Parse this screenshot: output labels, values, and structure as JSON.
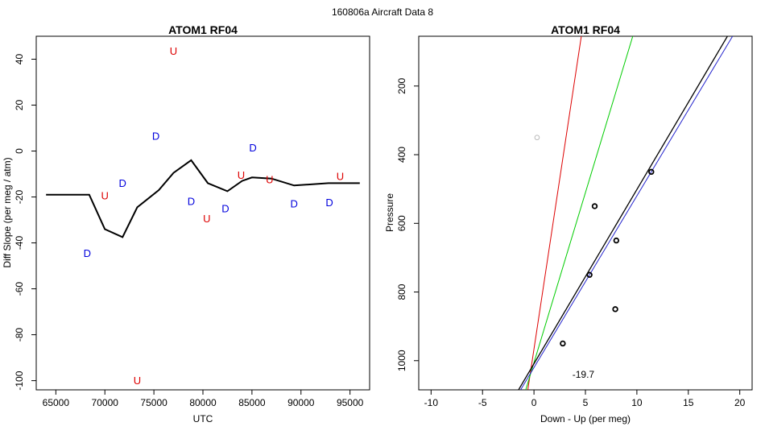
{
  "figure_title": "160806a   Aircraft Data 8",
  "colors": {
    "up": "#dd0000",
    "down": "#0000dd",
    "line": "#000000",
    "green": "#00cc00",
    "grey": "#bbbbbb",
    "blue": "#2222cc"
  },
  "chart_data": [
    {
      "type": "line",
      "title": "ATOM1 RF04",
      "xlabel": "UTC",
      "ylabel": "Diff Slope (per meg / atm)",
      "xlim": [
        63000,
        97000
      ],
      "ylim": [
        -104,
        50
      ],
      "xticks": [
        65000,
        70000,
        75000,
        80000,
        85000,
        90000,
        95000
      ],
      "yticks": [
        40,
        20,
        0,
        -20,
        -40,
        -60,
        -80,
        -100
      ],
      "line": {
        "x": [
          64000,
          68400,
          70000,
          71800,
          73300,
          75500,
          77000,
          78800,
          80500,
          82500,
          84000,
          85000,
          87000,
          89300,
          92800,
          94500,
          96000
        ],
        "y": [
          -19,
          -19,
          -34,
          -37.5,
          -24.5,
          -17,
          -9.5,
          -4,
          -14,
          -17.5,
          -13,
          -11.5,
          -12,
          -15,
          -14,
          -14,
          -14
        ]
      },
      "markers": [
        {
          "label": "D",
          "x": 68200,
          "y": -44.5,
          "kind": "down"
        },
        {
          "label": "U",
          "x": 70000,
          "y": -19.5,
          "kind": "up"
        },
        {
          "label": "D",
          "x": 71800,
          "y": -14,
          "kind": "down"
        },
        {
          "label": "U",
          "x": 73300,
          "y": -100,
          "kind": "up"
        },
        {
          "label": "D",
          "x": 75200,
          "y": 6.5,
          "kind": "down"
        },
        {
          "label": "U",
          "x": 77000,
          "y": 43.5,
          "kind": "up"
        },
        {
          "label": "D",
          "x": 78800,
          "y": -22,
          "kind": "down"
        },
        {
          "label": "U",
          "x": 80400,
          "y": -29.5,
          "kind": "up"
        },
        {
          "label": "D",
          "x": 82300,
          "y": -25,
          "kind": "down"
        },
        {
          "label": "U",
          "x": 83900,
          "y": -10.5,
          "kind": "up"
        },
        {
          "label": "D",
          "x": 85100,
          "y": 1.5,
          "kind": "down"
        },
        {
          "label": "U",
          "x": 86800,
          "y": -12.5,
          "kind": "up"
        },
        {
          "label": "D",
          "x": 89300,
          "y": -23,
          "kind": "down"
        },
        {
          "label": "D",
          "x": 92900,
          "y": -22.5,
          "kind": "down"
        },
        {
          "label": "U",
          "x": 94000,
          "y": -11,
          "kind": "up"
        }
      ]
    },
    {
      "type": "scatter",
      "title": "ATOM1 RF04",
      "xlabel": "Down - Up (per meg)",
      "ylabel": "Pressure",
      "xlim": [
        -11.2,
        21.2
      ],
      "ylim": [
        1085,
        55
      ],
      "y_reversed": true,
      "xticks": [
        -10,
        -5,
        0,
        5,
        10,
        15,
        20
      ],
      "yticks": [
        200,
        400,
        600,
        800,
        1000
      ],
      "points": [
        {
          "x": 11.4,
          "y": 450,
          "color": "black"
        },
        {
          "x": 5.9,
          "y": 550,
          "color": "black"
        },
        {
          "x": 8.0,
          "y": 650,
          "color": "black"
        },
        {
          "x": 5.4,
          "y": 750,
          "color": "black"
        },
        {
          "x": 7.9,
          "y": 850,
          "color": "black"
        },
        {
          "x": 2.8,
          "y": 950,
          "color": "black"
        },
        {
          "x": 0.3,
          "y": 350,
          "color": "grey"
        }
      ],
      "lines": [
        {
          "color": "red",
          "x1": -0.6,
          "y1": 1085,
          "x2": 4.6,
          "y2": 55
        },
        {
          "color": "green",
          "x1": -0.8,
          "y1": 1085,
          "x2": 9.6,
          "y2": 55
        },
        {
          "color": "black",
          "x1": -1.5,
          "y1": 1085,
          "x2": 18.8,
          "y2": 55
        },
        {
          "color": "blue",
          "x1": -1.3,
          "y1": 1085,
          "x2": 19.3,
          "y2": 55
        }
      ],
      "annotation": {
        "text": "-19.7",
        "x": 4.8,
        "y": 1040
      }
    }
  ]
}
